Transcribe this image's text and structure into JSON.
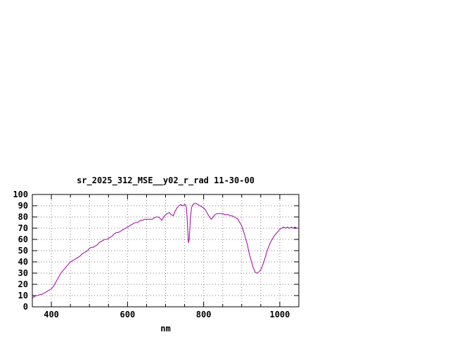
{
  "window": {
    "background": "#ffffff"
  },
  "chart_data": {
    "type": "line",
    "title": "sr_2025_312_MSE__y02_r_rad 11-30-00",
    "xlabel": "nm",
    "ylabel": "",
    "xlim": [
      350,
      1050
    ],
    "ylim": [
      0,
      100
    ],
    "x_ticks": [
      400,
      600,
      800,
      1000
    ],
    "x_grid": [
      400,
      450,
      500,
      550,
      600,
      650,
      700,
      750,
      800,
      850,
      900,
      950,
      1000
    ],
    "y_ticks": [
      0,
      10,
      20,
      30,
      40,
      50,
      60,
      70,
      80,
      90,
      100
    ],
    "grid": true,
    "legend_position": "none",
    "line_color": "#a000a0",
    "grid_color": "#808080",
    "axis_color": "#000000",
    "series": [
      {
        "name": "sr_2025_312_MSE__y02_r_rad",
        "points": [
          [
            350,
            8
          ],
          [
            355,
            9
          ],
          [
            360,
            10
          ],
          [
            365,
            10
          ],
          [
            370,
            11
          ],
          [
            375,
            11
          ],
          [
            380,
            12
          ],
          [
            385,
            13
          ],
          [
            390,
            14
          ],
          [
            395,
            15
          ],
          [
            400,
            16
          ],
          [
            405,
            18
          ],
          [
            410,
            21
          ],
          [
            415,
            24
          ],
          [
            420,
            27
          ],
          [
            425,
            30
          ],
          [
            430,
            32
          ],
          [
            435,
            34
          ],
          [
            440,
            36
          ],
          [
            445,
            38
          ],
          [
            450,
            40
          ],
          [
            455,
            41
          ],
          [
            460,
            42
          ],
          [
            465,
            43
          ],
          [
            470,
            44
          ],
          [
            475,
            45
          ],
          [
            480,
            47
          ],
          [
            485,
            48
          ],
          [
            490,
            49
          ],
          [
            495,
            50
          ],
          [
            500,
            52
          ],
          [
            505,
            53
          ],
          [
            510,
            53
          ],
          [
            515,
            54
          ],
          [
            520,
            55
          ],
          [
            525,
            57
          ],
          [
            530,
            58
          ],
          [
            535,
            59
          ],
          [
            540,
            60
          ],
          [
            545,
            60
          ],
          [
            550,
            61
          ],
          [
            555,
            62
          ],
          [
            560,
            63
          ],
          [
            565,
            65
          ],
          [
            570,
            66
          ],
          [
            575,
            66
          ],
          [
            580,
            67
          ],
          [
            585,
            68
          ],
          [
            590,
            69
          ],
          [
            595,
            70
          ],
          [
            600,
            71
          ],
          [
            605,
            72
          ],
          [
            610,
            73
          ],
          [
            615,
            74
          ],
          [
            620,
            75
          ],
          [
            625,
            75
          ],
          [
            630,
            76
          ],
          [
            635,
            77
          ],
          [
            640,
            77
          ],
          [
            645,
            78
          ],
          [
            650,
            78
          ],
          [
            655,
            78
          ],
          [
            660,
            78
          ],
          [
            665,
            78
          ],
          [
            670,
            79
          ],
          [
            675,
            80
          ],
          [
            680,
            80
          ],
          [
            685,
            79
          ],
          [
            690,
            77
          ],
          [
            695,
            80
          ],
          [
            700,
            82
          ],
          [
            705,
            83
          ],
          [
            710,
            84
          ],
          [
            715,
            82
          ],
          [
            720,
            81
          ],
          [
            725,
            85
          ],
          [
            730,
            88
          ],
          [
            735,
            90
          ],
          [
            740,
            91
          ],
          [
            745,
            90
          ],
          [
            750,
            91
          ],
          [
            752,
            91
          ],
          [
            755,
            88
          ],
          [
            758,
            70
          ],
          [
            760,
            57
          ],
          [
            762,
            60
          ],
          [
            765,
            78
          ],
          [
            768,
            88
          ],
          [
            770,
            90
          ],
          [
            775,
            92
          ],
          [
            780,
            92
          ],
          [
            785,
            91
          ],
          [
            790,
            90
          ],
          [
            795,
            89
          ],
          [
            800,
            88
          ],
          [
            805,
            86
          ],
          [
            810,
            83
          ],
          [
            815,
            80
          ],
          [
            820,
            78
          ],
          [
            825,
            80
          ],
          [
            830,
            82
          ],
          [
            835,
            83
          ],
          [
            840,
            83
          ],
          [
            845,
            83
          ],
          [
            850,
            83
          ],
          [
            855,
            82
          ],
          [
            860,
            82
          ],
          [
            865,
            82
          ],
          [
            870,
            81
          ],
          [
            875,
            81
          ],
          [
            880,
            80
          ],
          [
            885,
            79
          ],
          [
            890,
            78
          ],
          [
            895,
            75
          ],
          [
            900,
            72
          ],
          [
            905,
            67
          ],
          [
            910,
            61
          ],
          [
            915,
            55
          ],
          [
            920,
            47
          ],
          [
            925,
            41
          ],
          [
            930,
            35
          ],
          [
            935,
            31
          ],
          [
            940,
            30
          ],
          [
            945,
            31
          ],
          [
            950,
            33
          ],
          [
            955,
            37
          ],
          [
            960,
            42
          ],
          [
            965,
            48
          ],
          [
            970,
            53
          ],
          [
            975,
            57
          ],
          [
            980,
            60
          ],
          [
            985,
            63
          ],
          [
            990,
            65
          ],
          [
            995,
            67
          ],
          [
            1000,
            69
          ],
          [
            1005,
            70
          ],
          [
            1010,
            71
          ],
          [
            1015,
            70
          ],
          [
            1020,
            71
          ],
          [
            1025,
            70
          ],
          [
            1030,
            71
          ],
          [
            1035,
            70
          ],
          [
            1040,
            71
          ],
          [
            1045,
            70
          ],
          [
            1050,
            70
          ]
        ]
      }
    ]
  }
}
